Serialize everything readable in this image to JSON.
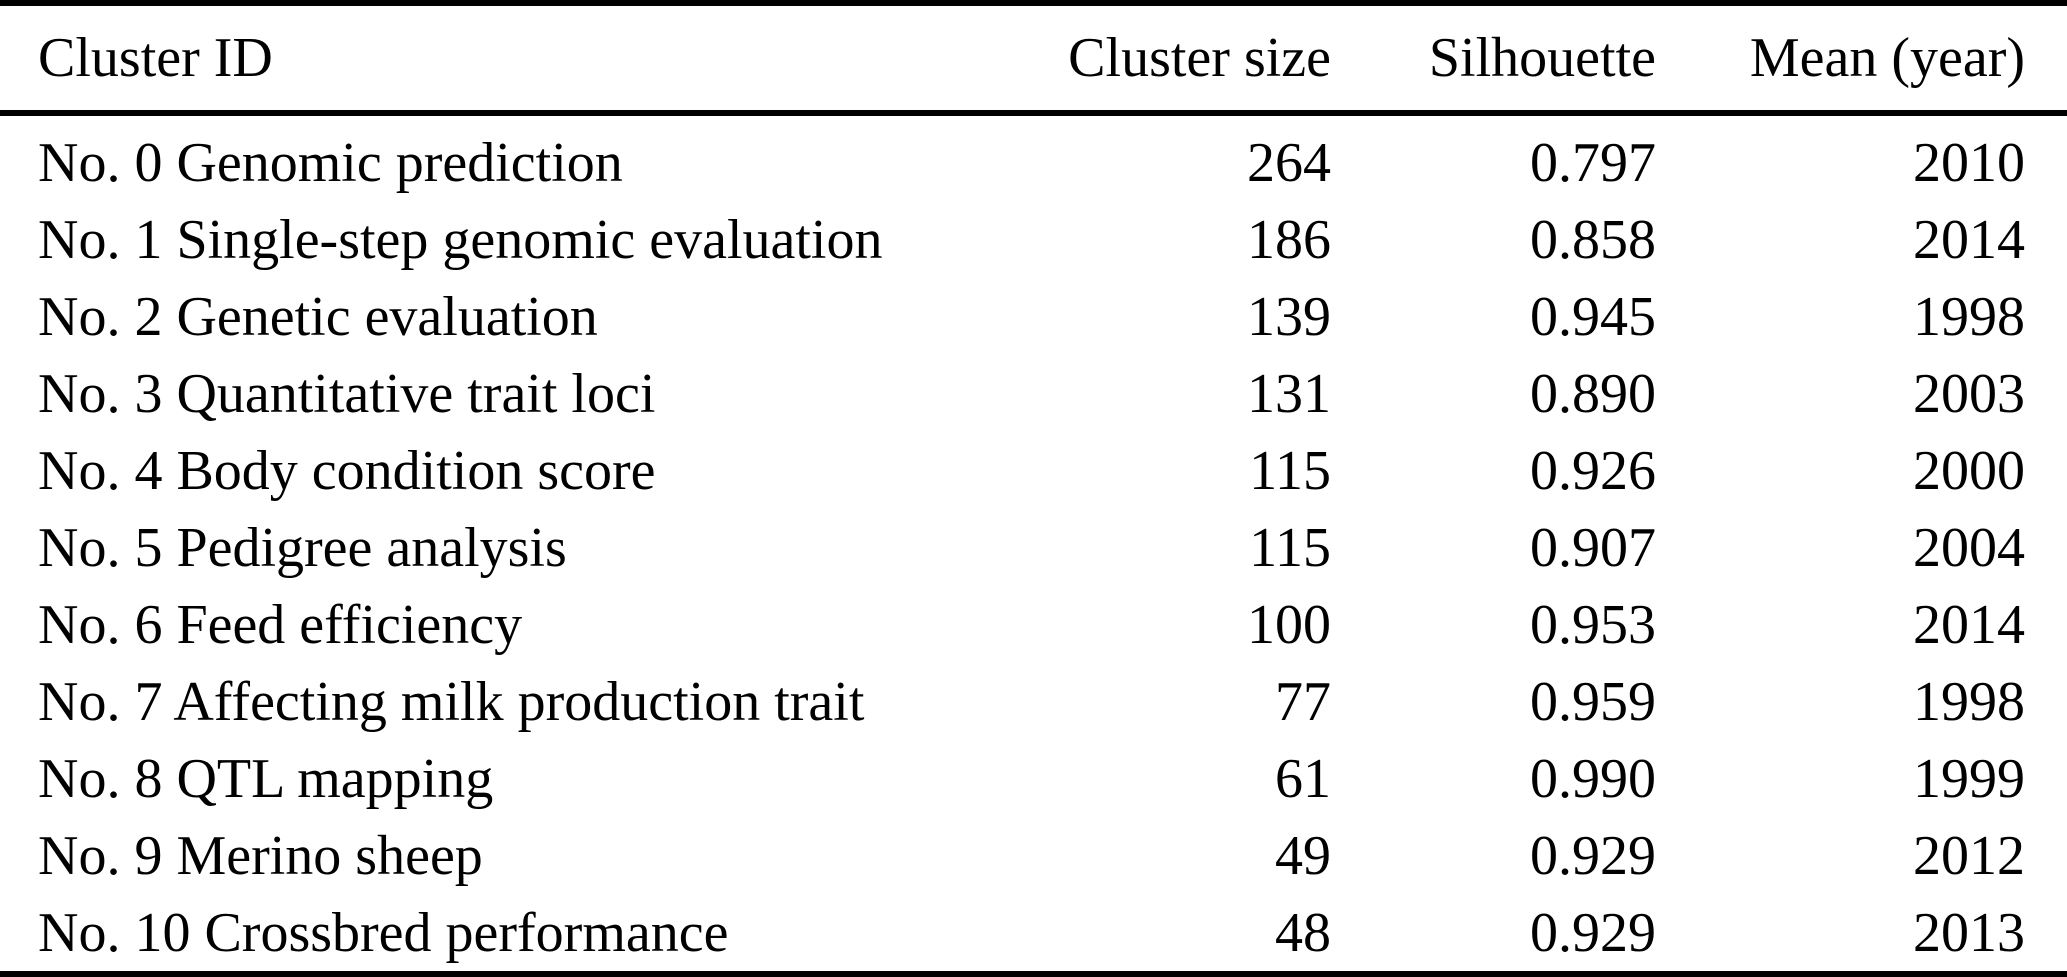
{
  "table": {
    "columns": [
      {
        "label": "Cluster ID",
        "align": "left"
      },
      {
        "label": "Cluster size",
        "align": "right"
      },
      {
        "label": "Silhouette",
        "align": "right"
      },
      {
        "label": "Mean (year)",
        "align": "right"
      }
    ],
    "rows": [
      [
        "No. 0 Genomic prediction",
        "264",
        "0.797",
        "2010"
      ],
      [
        "No. 1 Single-step genomic evaluation",
        "186",
        "0.858",
        "2014"
      ],
      [
        "No. 2 Genetic evaluation",
        "139",
        "0.945",
        "1998"
      ],
      [
        "No. 3 Quantitative trait loci",
        "131",
        "0.890",
        "2003"
      ],
      [
        "No. 4 Body condition score",
        "115",
        "0.926",
        "2000"
      ],
      [
        "No. 5 Pedigree analysis",
        "115",
        "0.907",
        "2004"
      ],
      [
        "No. 6 Feed efficiency",
        "100",
        "0.953",
        "2014"
      ],
      [
        "No. 7 Affecting milk production trait",
        "77",
        "0.959",
        "1998"
      ],
      [
        "No. 8 QTL mapping",
        "61",
        "0.990",
        "1999"
      ],
      [
        "No. 9 Merino sheep",
        "49",
        "0.929",
        "2012"
      ],
      [
        "No. 10 Crossbred performance",
        "48",
        "0.929",
        "2013"
      ]
    ]
  },
  "chart_data": {
    "type": "table",
    "title": "",
    "columns": [
      "Cluster ID",
      "Cluster size",
      "Silhouette",
      "Mean (year)"
    ],
    "cluster_ids": [
      "No. 0 Genomic prediction",
      "No. 1 Single-step genomic evaluation",
      "No. 2 Genetic evaluation",
      "No. 3 Quantitative trait loci",
      "No. 4 Body condition score",
      "No. 5 Pedigree analysis",
      "No. 6 Feed efficiency",
      "No. 7 Affecting milk production trait",
      "No. 8 QTL mapping",
      "No. 9 Merino sheep",
      "No. 10 Crossbred performance"
    ],
    "cluster_size": [
      264,
      186,
      139,
      131,
      115,
      115,
      100,
      77,
      61,
      49,
      48
    ],
    "silhouette": [
      0.797,
      0.858,
      0.945,
      0.89,
      0.926,
      0.907,
      0.953,
      0.959,
      0.99,
      0.929,
      0.929
    ],
    "mean_year": [
      2010,
      2014,
      1998,
      2003,
      2000,
      2004,
      2014,
      1998,
      1999,
      2012,
      2013
    ],
    "colors": {
      "text": "#000000",
      "background": "#ffffff",
      "rule": "#000000"
    }
  }
}
